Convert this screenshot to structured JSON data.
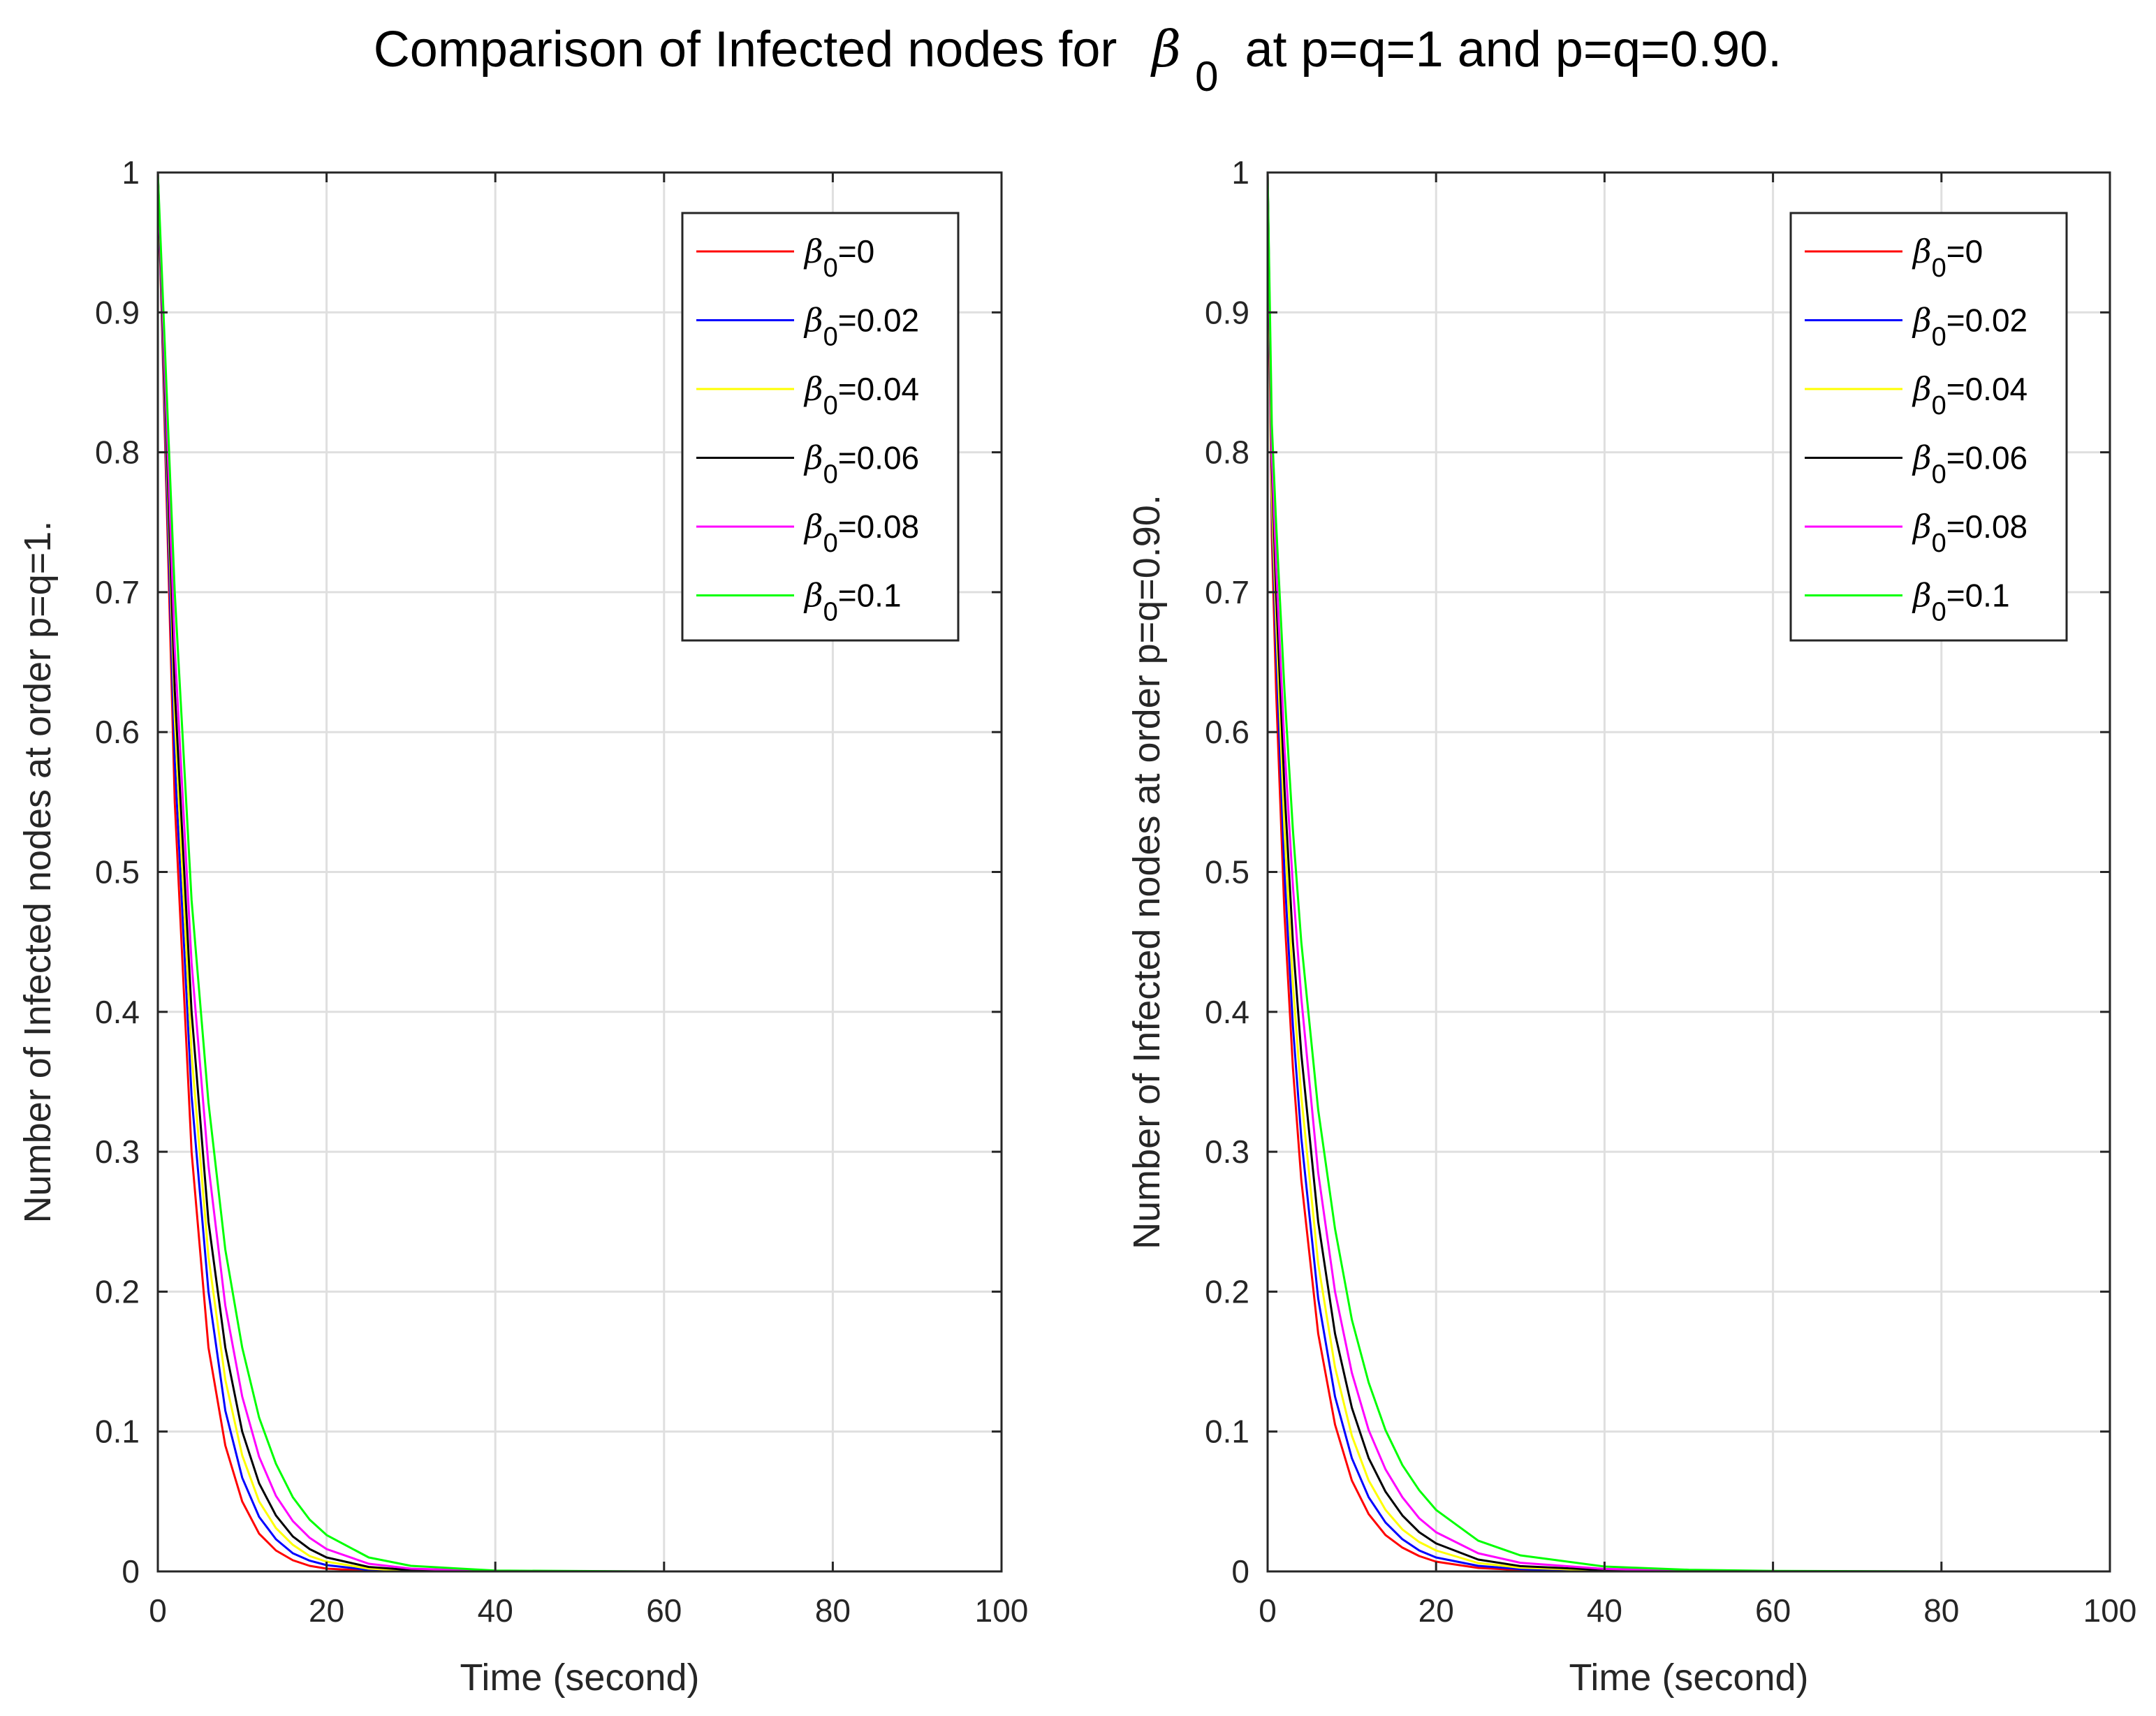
{
  "figure": {
    "title_prefix": "Comparison of Infected nodes for",
    "title_symbol": "β",
    "title_subscript": "0",
    "title_suffix": "at p=q=1 and p=q=0.90."
  },
  "chart_data": [
    {
      "type": "line",
      "xlabel": "Time (second)",
      "ylabel": "Number of Infected nodes at order p=q=1.",
      "xlim": [
        0,
        100
      ],
      "ylim": [
        0,
        1
      ],
      "xticks": [
        "0",
        "20",
        "40",
        "60",
        "80",
        "100"
      ],
      "yticks": [
        "0",
        "0.1",
        "0.2",
        "0.3",
        "0.4",
        "0.5",
        "0.6",
        "0.7",
        "0.8",
        "0.9",
        "1"
      ],
      "grid": true,
      "legend_position": "top-right",
      "x": [
        0,
        2,
        4,
        6,
        8,
        10,
        12,
        14,
        16,
        18,
        20,
        25,
        30,
        40,
        60,
        80,
        100
      ],
      "series": [
        {
          "name": "β0=0",
          "symbol": "β",
          "sub": "0",
          "rest": "=0",
          "color": "#ff0000",
          "values": [
            1,
            0.55,
            0.3,
            0.16,
            0.09,
            0.05,
            0.027,
            0.015,
            0.008,
            0.004,
            0.002,
            0.0005,
            0.0001,
            0,
            0,
            0,
            0
          ]
        },
        {
          "name": "β0=0.02",
          "symbol": "β",
          "sub": "0",
          "rest": "=0.02",
          "color": "#0000ff",
          "values": [
            1,
            0.58,
            0.34,
            0.2,
            0.115,
            0.067,
            0.039,
            0.023,
            0.013,
            0.0077,
            0.0045,
            0.0011,
            0.0003,
            0,
            0,
            0,
            0
          ]
        },
        {
          "name": "β0=0.04",
          "symbol": "β",
          "sub": "0",
          "rest": "=0.04",
          "color": "#ffff00",
          "values": [
            1,
            0.61,
            0.37,
            0.225,
            0.137,
            0.083,
            0.05,
            0.031,
            0.019,
            0.011,
            0.007,
            0.002,
            0.0006,
            0,
            0,
            0,
            0
          ]
        },
        {
          "name": "β0=0.06",
          "symbol": "β",
          "sub": "0",
          "rest": "=0.06",
          "color": "#000000",
          "values": [
            1,
            0.63,
            0.4,
            0.25,
            0.16,
            0.1,
            0.063,
            0.04,
            0.025,
            0.016,
            0.01,
            0.0032,
            0.001,
            0.0001,
            0,
            0,
            0
          ]
        },
        {
          "name": "β0=0.08",
          "symbol": "β",
          "sub": "0",
          "rest": "=0.08",
          "color": "#ff00ff",
          "values": [
            1,
            0.66,
            0.435,
            0.29,
            0.19,
            0.125,
            0.082,
            0.054,
            0.036,
            0.024,
            0.016,
            0.0055,
            0.002,
            0.0002,
            0,
            0,
            0
          ]
        },
        {
          "name": "β0=0.1",
          "symbol": "β",
          "sub": "0",
          "rest": "=0.1",
          "color": "#00ff00",
          "values": [
            1,
            0.7,
            0.48,
            0.335,
            0.23,
            0.16,
            0.11,
            0.077,
            0.053,
            0.037,
            0.026,
            0.01,
            0.004,
            0.0006,
            0,
            0,
            0
          ]
        }
      ]
    },
    {
      "type": "line",
      "xlabel": "Time (second)",
      "ylabel": "Number of Infected nodes at order p=q=0.90.",
      "xlim": [
        0,
        100
      ],
      "ylim": [
        0,
        1
      ],
      "xticks": [
        "0",
        "20",
        "40",
        "60",
        "80",
        "100"
      ],
      "yticks": [
        "0",
        "0.1",
        "0.2",
        "0.3",
        "0.4",
        "0.5",
        "0.6",
        "0.7",
        "0.8",
        "0.9",
        "1"
      ],
      "grid": true,
      "legend_position": "top-right",
      "x": [
        0,
        0.5,
        1,
        2,
        3,
        4,
        6,
        8,
        10,
        12,
        14,
        16,
        18,
        20,
        25,
        30,
        40,
        50,
        60,
        80,
        100
      ],
      "series": [
        {
          "name": "β0=0",
          "symbol": "β",
          "sub": "0",
          "rest": "=0",
          "color": "#ff0000",
          "values": [
            1,
            0.74,
            0.63,
            0.47,
            0.36,
            0.28,
            0.17,
            0.105,
            0.065,
            0.041,
            0.026,
            0.017,
            0.011,
            0.007,
            0.0025,
            0.001,
            0.0002,
            0,
            0,
            0,
            0
          ]
        },
        {
          "name": "β0=0.02",
          "symbol": "β",
          "sub": "0",
          "rest": "=0.02",
          "color": "#0000ff",
          "values": [
            1,
            0.76,
            0.66,
            0.5,
            0.39,
            0.31,
            0.195,
            0.125,
            0.081,
            0.053,
            0.035,
            0.023,
            0.015,
            0.01,
            0.004,
            0.0017,
            0.0004,
            0.0001,
            0,
            0,
            0
          ]
        },
        {
          "name": "β0=0.04",
          "symbol": "β",
          "sub": "0",
          "rest": "=0.04",
          "color": "#ffff00",
          "values": [
            1,
            0.77,
            0.68,
            0.53,
            0.42,
            0.34,
            0.22,
            0.146,
            0.097,
            0.065,
            0.044,
            0.03,
            0.021,
            0.015,
            0.006,
            0.0027,
            0.0007,
            0.0002,
            0,
            0,
            0
          ]
        },
        {
          "name": "β0=0.06",
          "symbol": "β",
          "sub": "0",
          "rest": "=0.06",
          "color": "#000000",
          "values": [
            1,
            0.79,
            0.7,
            0.56,
            0.45,
            0.37,
            0.25,
            0.17,
            0.117,
            0.081,
            0.057,
            0.04,
            0.028,
            0.02,
            0.0085,
            0.0038,
            0.001,
            0.0003,
            0,
            0,
            0
          ]
        },
        {
          "name": "β0=0.08",
          "symbol": "β",
          "sub": "0",
          "rest": "=0.08",
          "color": "#ff00ff",
          "values": [
            1,
            0.8,
            0.72,
            0.59,
            0.49,
            0.41,
            0.285,
            0.2,
            0.142,
            0.101,
            0.073,
            0.053,
            0.038,
            0.028,
            0.013,
            0.0062,
            0.0018,
            0.0006,
            0.0002,
            0,
            0
          ]
        },
        {
          "name": "β0=0.1",
          "symbol": "β",
          "sub": "0",
          "rest": "=0.1",
          "color": "#00ff00",
          "values": [
            1,
            0.82,
            0.75,
            0.63,
            0.53,
            0.45,
            0.33,
            0.245,
            0.18,
            0.135,
            0.101,
            0.076,
            0.058,
            0.044,
            0.022,
            0.0115,
            0.0035,
            0.0012,
            0.0004,
            0,
            0
          ]
        }
      ]
    }
  ]
}
